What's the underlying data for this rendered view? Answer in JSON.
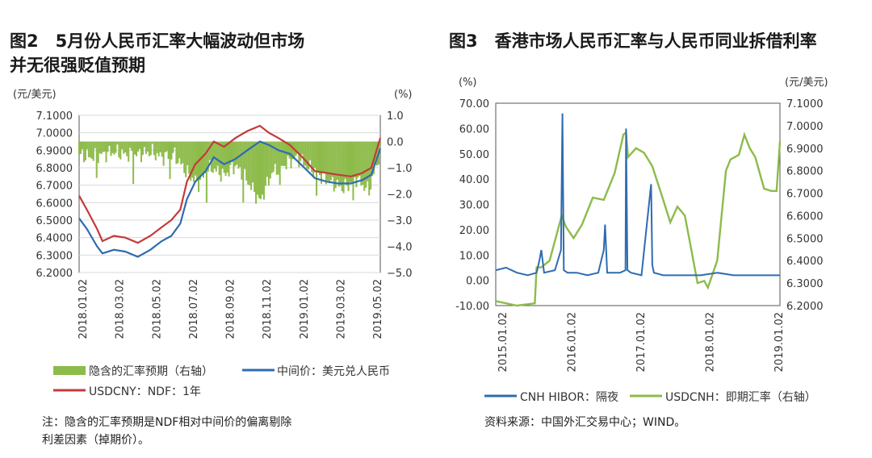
{
  "figure2": {
    "title_line1": "图2　5月份人民币汇率大幅波动但市场",
    "title_line2": "并无很强贬值预期",
    "unit_left": "(元/美元)",
    "unit_right": "(%)",
    "note_line1": "注：隐含的汇率预期是NDF相对中间价的偏离剔除",
    "note_line2": "利差因素（掉期价）。",
    "chart_data": {
      "type": "line",
      "left_axis": {
        "ticks": [
          "7.1000",
          "7.0000",
          "6.9000",
          "6.8000",
          "6.7000",
          "6.6000",
          "6.5000",
          "6.4000",
          "6.3000",
          "6.2000"
        ],
        "ylim": [
          6.2,
          7.1
        ]
      },
      "right_axis": {
        "ticks": [
          "1.0",
          "0.0",
          "−1.0",
          "−2.0",
          "−3.0",
          "−4.0",
          "−5.0"
        ],
        "ylim": [
          -5.0,
          1.0
        ]
      },
      "x_ticks": [
        "2018.01.02",
        "2018.03.02",
        "2018.05.02",
        "2018.07.02",
        "2018.09.02",
        "2018.11.02",
        "2019.01.02",
        "2019.03.02",
        "2019.05.02"
      ],
      "xlim": [
        "2018-01-02",
        "2019-05-20"
      ],
      "legend": [
        "隐含的汇率预期（右轴）",
        "中间价：美元兑人民币",
        "USDCNY：NDF：1年"
      ],
      "colors": {
        "expectation": "#8dbb4a",
        "central": "#2f6cb0",
        "ndf": "#c43a3a"
      },
      "series": [
        {
          "name": "中间价：美元兑人民币",
          "x": [
            "2018-01-02",
            "2018-01-15",
            "2018-02-01",
            "2018-02-10",
            "2018-03-01",
            "2018-03-20",
            "2018-04-10",
            "2018-05-01",
            "2018-05-20",
            "2018-06-05",
            "2018-06-20",
            "2018-07-01",
            "2018-07-15",
            "2018-08-01",
            "2018-08-15",
            "2018-09-01",
            "2018-09-20",
            "2018-10-10",
            "2018-10-31",
            "2018-11-15",
            "2018-12-01",
            "2018-12-20",
            "2019-01-10",
            "2019-01-31",
            "2019-02-20",
            "2019-03-10",
            "2019-04-01",
            "2019-04-20",
            "2019-05-05",
            "2019-05-20"
          ],
          "values": [
            6.51,
            6.45,
            6.35,
            6.31,
            6.33,
            6.32,
            6.29,
            6.33,
            6.38,
            6.41,
            6.48,
            6.62,
            6.72,
            6.78,
            6.86,
            6.82,
            6.85,
            6.9,
            6.95,
            6.93,
            6.9,
            6.88,
            6.81,
            6.74,
            6.72,
            6.71,
            6.71,
            6.73,
            6.76,
            6.91
          ]
        },
        {
          "name": "USDCNY：NDF：1年",
          "x": [
            "2018-01-02",
            "2018-01-15",
            "2018-02-01",
            "2018-02-10",
            "2018-03-01",
            "2018-03-20",
            "2018-04-10",
            "2018-05-01",
            "2018-05-20",
            "2018-06-05",
            "2018-06-20",
            "2018-07-01",
            "2018-07-15",
            "2018-08-01",
            "2018-08-15",
            "2018-09-01",
            "2018-09-20",
            "2018-10-10",
            "2018-10-31",
            "2018-11-15",
            "2018-12-01",
            "2018-12-20",
            "2019-01-10",
            "2019-01-31",
            "2019-02-20",
            "2019-03-10",
            "2019-04-01",
            "2019-04-20",
            "2019-05-05",
            "2019-05-20"
          ],
          "values": [
            6.64,
            6.56,
            6.45,
            6.38,
            6.41,
            6.4,
            6.37,
            6.41,
            6.46,
            6.5,
            6.56,
            6.72,
            6.82,
            6.88,
            6.95,
            6.92,
            6.97,
            7.01,
            7.04,
            7.0,
            6.97,
            6.93,
            6.86,
            6.78,
            6.77,
            6.76,
            6.75,
            6.77,
            6.8,
            6.97
          ]
        },
        {
          "name": "隐含的汇率预期（右轴）",
          "x": [
            "2018-01-02",
            "2018-01-20",
            "2018-02-10",
            "2018-03-01",
            "2018-03-20",
            "2018-04-10",
            "2018-05-01",
            "2018-05-20",
            "2018-06-10",
            "2018-07-01",
            "2018-07-20",
            "2018-08-10",
            "2018-09-01",
            "2018-09-20",
            "2018-10-10",
            "2018-10-31",
            "2018-11-20",
            "2018-12-10",
            "2019-01-01",
            "2019-01-20",
            "2019-02-10",
            "2019-03-01",
            "2019-03-20",
            "2019-04-10",
            "2019-05-01",
            "2019-05-20"
          ],
          "values": [
            -0.5,
            -0.6,
            -0.5,
            -0.4,
            -0.5,
            -0.5,
            -0.4,
            -0.6,
            -0.5,
            -1.2,
            -1.6,
            -1.0,
            -1.3,
            -0.9,
            -1.5,
            -2.3,
            -1.2,
            -0.9,
            -0.6,
            -1.0,
            -1.3,
            -1.6,
            -1.8,
            -1.4,
            -1.9,
            -0.4
          ]
        }
      ]
    }
  },
  "figure3": {
    "title": "图3　香港市场人民币汇率与人民币同业拆借利率",
    "unit_left": "(%)",
    "unit_right": "(元/美元)",
    "source": "资料来源：中国外汇交易中心；WIND。",
    "chart_data": {
      "type": "line",
      "left_axis": {
        "ticks": [
          "70.00",
          "60.00",
          "50.00",
          "40.00",
          "30.00",
          "20.00",
          "10.00",
          "0.00",
          "-10.00"
        ],
        "ylim": [
          -10,
          70
        ]
      },
      "right_axis": {
        "ticks": [
          "7.1000",
          "7.0000",
          "6.9000",
          "6.8000",
          "6.7000",
          "6.6000",
          "6.5000",
          "6.4000",
          "6.3000",
          "6.2000"
        ],
        "ylim": [
          6.2,
          7.1
        ]
      },
      "x_ticks": [
        "2015.01.02",
        "2016.01.02",
        "2017.01.02",
        "2018.01.02",
        "2019.01.02"
      ],
      "xlim": [
        "2015-01-02",
        "2019-05-20"
      ],
      "legend": [
        "CNH HIBOR：隔夜",
        "USDCNH：即期汇率（右轴）"
      ],
      "colors": {
        "hibor": "#2f6cb0",
        "usdcnh": "#8dbb4a"
      },
      "series": [
        {
          "name": "CNH HIBOR：隔夜",
          "x": [
            "2015-01-02",
            "2015-03-01",
            "2015-05-01",
            "2015-07-01",
            "2015-08-20",
            "2015-09-05",
            "2015-09-15",
            "2015-10-01",
            "2015-12-01",
            "2016-01-04",
            "2016-01-12",
            "2016-01-20",
            "2016-02-10",
            "2016-04-01",
            "2016-06-01",
            "2016-08-01",
            "2016-09-01",
            "2016-09-08",
            "2016-09-20",
            "2016-11-01",
            "2016-12-01",
            "2017-01-01",
            "2017-01-04",
            "2017-01-12",
            "2017-02-01",
            "2017-04-01",
            "2017-05-25",
            "2017-06-01",
            "2017-06-10",
            "2017-08-01",
            "2017-12-01",
            "2018-03-01",
            "2018-06-01",
            "2018-09-01",
            "2018-12-01",
            "2019-03-01",
            "2019-05-20"
          ],
          "values": [
            4,
            5,
            3,
            2,
            3,
            8,
            12,
            3,
            4,
            12,
            66,
            4,
            3,
            3,
            2,
            3,
            12,
            22,
            3,
            3,
            3,
            4,
            60,
            4,
            3,
            2,
            38,
            6,
            3,
            2,
            2,
            2,
            3,
            2,
            2,
            2,
            2
          ]
        },
        {
          "name": "USDCNH：即期汇率（右轴）",
          "x": [
            "2015-01-02",
            "2015-03-01",
            "2015-05-01",
            "2015-08-10",
            "2015-08-20",
            "2015-09-15",
            "2015-11-01",
            "2016-01-08",
            "2016-02-01",
            "2016-03-15",
            "2016-05-01",
            "2016-07-01",
            "2016-09-01",
            "2016-11-01",
            "2016-12-20",
            "2017-01-04",
            "2017-01-15",
            "2017-03-01",
            "2017-04-15",
            "2017-06-01",
            "2017-08-01",
            "2017-09-10",
            "2017-10-20",
            "2017-12-01",
            "2018-01-01",
            "2018-02-10",
            "2018-03-20",
            "2018-04-10",
            "2018-06-01",
            "2018-07-20",
            "2018-08-15",
            "2018-10-01",
            "2018-11-01",
            "2018-12-01",
            "2019-01-01",
            "2019-02-20",
            "2019-04-01",
            "2019-05-01",
            "2019-05-20"
          ],
          "values": [
            6.22,
            6.21,
            6.2,
            6.21,
            6.37,
            6.37,
            6.4,
            6.6,
            6.55,
            6.5,
            6.56,
            6.68,
            6.67,
            6.79,
            6.96,
            6.97,
            6.86,
            6.9,
            6.88,
            6.82,
            6.67,
            6.57,
            6.64,
            6.6,
            6.47,
            6.3,
            6.31,
            6.28,
            6.4,
            6.8,
            6.85,
            6.87,
            6.96,
            6.9,
            6.86,
            6.72,
            6.71,
            6.71,
            6.93
          ]
        }
      ]
    }
  }
}
